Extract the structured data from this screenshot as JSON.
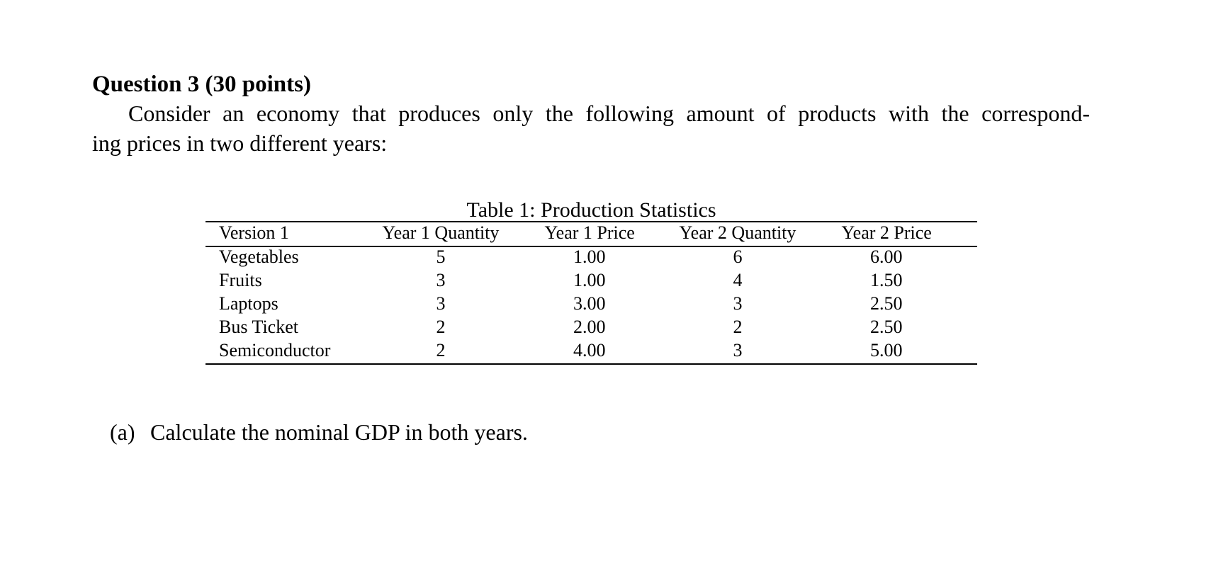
{
  "question": {
    "heading": "Question 3 (30 points)",
    "lines": [
      "Consider an economy that produces only the following amount of products with the correspond-",
      "ing prices in two different years:"
    ]
  },
  "table": {
    "caption": "Table 1: Production Statistics",
    "header": [
      "Version 1",
      "Year 1 Quantity",
      "Year 1 Price",
      "Year 2 Quantity",
      "Year 2 Price"
    ],
    "rows": [
      [
        "Vegetables",
        "5",
        "1.00",
        "6",
        "6.00"
      ],
      [
        "Fruits",
        "3",
        "1.00",
        "4",
        "1.50"
      ],
      [
        "Laptops",
        "3",
        "3.00",
        "3",
        "2.50"
      ],
      [
        "Bus Ticket",
        "2",
        "2.00",
        "2",
        "2.50"
      ],
      [
        "Semiconductor",
        "2",
        "4.00",
        "3",
        "5.00"
      ]
    ]
  },
  "parts": [
    {
      "label": "(a)",
      "text": "Calculate the nominal GDP in both years."
    }
  ]
}
